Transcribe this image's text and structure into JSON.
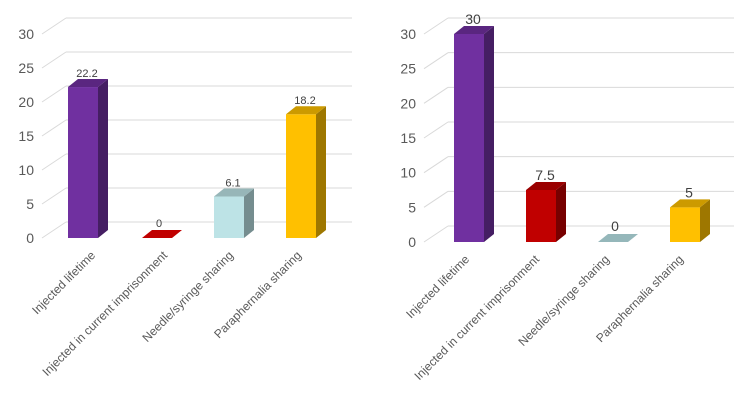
{
  "chart_data": [
    {
      "type": "bar",
      "categories": [
        "Injected lifetime",
        "Injected in current imprisonment",
        "Needle/syringe sharing",
        "Paraphernalia sharing"
      ],
      "values": [
        22.2,
        0,
        6.1,
        18.2
      ],
      "data_labels": [
        "22.2",
        "0",
        "6.1",
        "18.2"
      ],
      "colors": [
        "#7030A0",
        "#C00000",
        "#BDE3E6",
        "#FFC000"
      ],
      "ylim": [
        0,
        30
      ],
      "yticks": [
        0,
        5,
        10,
        15,
        20,
        25,
        30
      ],
      "grid": true,
      "style": "3d"
    },
    {
      "type": "bar",
      "categories": [
        "Injected lifetime",
        "Injected in current imprisonment",
        "Needle/syringe sharing",
        "Paraphernalia sharing"
      ],
      "values": [
        30,
        7.5,
        0,
        5
      ],
      "data_labels": [
        "30",
        "7.5",
        "0",
        "5"
      ],
      "colors": [
        "#7030A0",
        "#C00000",
        "#95B7BA",
        "#FFC000"
      ],
      "ylim": [
        0,
        30
      ],
      "yticks": [
        0,
        5,
        10,
        15,
        20,
        25,
        30
      ],
      "grid": true,
      "style": "3d"
    }
  ]
}
